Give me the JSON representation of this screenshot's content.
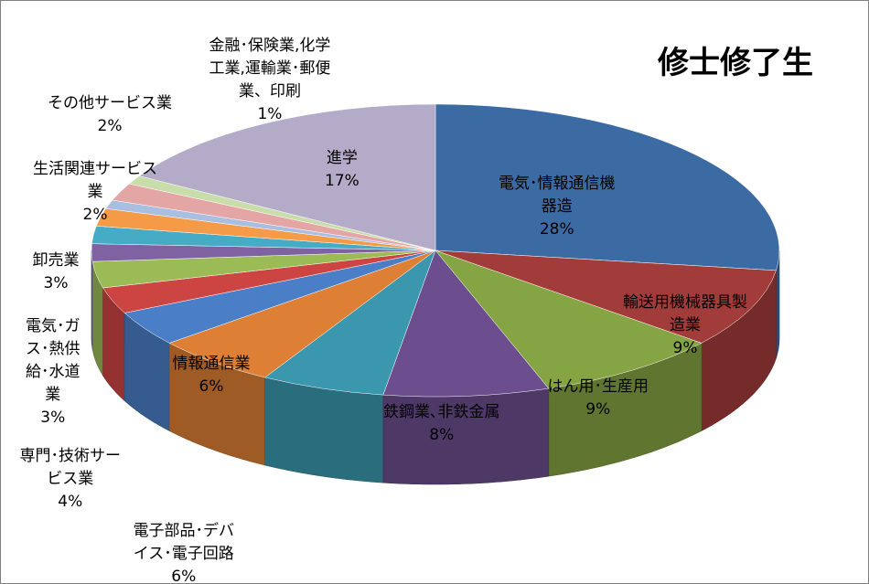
{
  "chart_data": {
    "type": "pie",
    "title": "修士修了生",
    "three_d": true,
    "legend": "none",
    "slices": [
      {
        "label": "電気･情報通信機\n器造",
        "value": 28,
        "value_label": "28%",
        "color": "#3c6aa3"
      },
      {
        "label": "輸送用機械器具製\n造業",
        "value": 9,
        "value_label": "9%",
        "color": "#a23c3a"
      },
      {
        "label": "はん用･生産用",
        "value": 9,
        "value_label": "9%",
        "color": "#85a443"
      },
      {
        "label": "鉄鋼業､非鉄金属",
        "value": 8,
        "value_label": "8%",
        "color": "#6c4e8e"
      },
      {
        "label": "電子部品･デバ\nイス･電子回路",
        "value": 6,
        "value_label": "6%",
        "color": "#3b97ae"
      },
      {
        "label": "情報通信業",
        "value": 6,
        "value_label": "6%",
        "color": "#dd7f34"
      },
      {
        "label": "専門･技術サー\nビス業",
        "value": 4,
        "value_label": "4%",
        "color": "#4a7ec7"
      },
      {
        "label": "電気･ガ\nス･熱供\n給･水道\n業",
        "value": 3,
        "value_label": "3%",
        "color": "#cc4543"
      },
      {
        "label": "卸売業",
        "value": 3,
        "value_label": "3%",
        "color": "#9bbb57"
      },
      {
        "label": "",
        "value": 2,
        "value_label": "",
        "color": "#7e62a1"
      },
      {
        "label": "",
        "value": 2,
        "value_label": "",
        "color": "#46abc5"
      },
      {
        "label": "生活関連サービス\n業",
        "value": 2,
        "value_label": "2%",
        "color": "#f59a46"
      },
      {
        "label": "",
        "value": 1,
        "value_label": "",
        "color": "#a9bfe2"
      },
      {
        "label": "その他サービス業",
        "value": 2,
        "value_label": "2%",
        "color": "#e4a6a5"
      },
      {
        "label": "金融･保険業,化学\n工業,運輸業･郵便\n業、印刷",
        "value": 1,
        "value_label": "1%",
        "color": "#c9ddaa"
      },
      {
        "label": "進学",
        "value": 17,
        "value_label": "17%",
        "color": "#b4abc9"
      }
    ]
  }
}
